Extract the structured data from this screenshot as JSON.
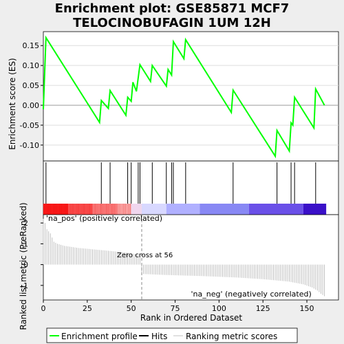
{
  "title_line1": "Enrichment plot: GSE85871 MCF7",
  "title_line2": "TELOCINOBUFAGIN 1UM 12H",
  "legend": {
    "enrichment_profile": "Enrichment profile",
    "hits": "Hits",
    "ranking_metric": "Ranking metric scores"
  },
  "colors": {
    "enrichment_line": "#00ff00",
    "hits": "#000000",
    "ranking_bars": "#c0c0c0",
    "pos_label": "#cc0000",
    "neg_label": "#0000cc",
    "zero_line": "#888888"
  },
  "chart_data": [
    {
      "type": "line",
      "panel": "enrichment",
      "ylabel": "Enrichment score (ES)",
      "xlim": [
        0,
        168
      ],
      "ylim": [
        -0.14,
        0.185
      ],
      "yticks": [
        -0.1,
        -0.05,
        0.0,
        0.05,
        0.1,
        0.15
      ],
      "ytick_labels": [
        "-0.10",
        "-0.05",
        "0.00",
        "0.05",
        "0.10",
        "0.15"
      ],
      "series": [
        {
          "name": "Enrichment profile",
          "x": [
            0,
            1.5,
            32,
            33,
            37,
            38,
            47,
            48,
            50,
            51,
            53,
            55,
            61,
            62,
            70,
            71,
            73,
            74,
            80,
            81,
            107,
            108,
            132,
            133,
            140,
            141,
            142,
            143,
            154,
            155,
            160
          ],
          "y": [
            -0.01,
            0.17,
            -0.043,
            0.012,
            -0.008,
            0.037,
            -0.025,
            0.02,
            0.01,
            0.058,
            0.035,
            0.102,
            0.06,
            0.1,
            0.048,
            0.09,
            0.076,
            0.16,
            0.117,
            0.165,
            -0.018,
            0.038,
            -0.128,
            -0.063,
            -0.115,
            -0.044,
            -0.05,
            0.02,
            -0.057,
            0.041,
            0.0
          ]
        }
      ]
    },
    {
      "type": "scatter",
      "panel": "hits",
      "hit_positions": [
        1.5,
        33,
        38,
        48,
        50,
        54,
        55,
        62,
        70,
        73,
        74,
        81,
        108,
        133,
        141,
        143,
        155
      ]
    },
    {
      "type": "bar",
      "panel": "ranking",
      "xlabel": "Rank in Ordered Dataset",
      "ylabel": "Ranked list metric (PreRanked)",
      "xticks": [
        0,
        25,
        50,
        75,
        100,
        125,
        150
      ],
      "yticks": [
        -1,
        0,
        1,
        2
      ],
      "ylim": [
        -1.7,
        2.4
      ],
      "zero_cross_label": "Zero cross at 56",
      "zero_cross": 56,
      "pos_label": "'na_pos' (positively correlated)",
      "neg_label": "'na_neg' (negatively correlated)",
      "n": 161,
      "anchors_x": [
        0,
        1,
        2,
        4,
        6,
        8,
        12,
        20,
        30,
        40,
        50,
        55,
        56,
        70,
        90,
        110,
        125,
        140,
        148,
        153,
        156,
        158,
        160
      ],
      "anchors_y": [
        2.2,
        2.0,
        1.7,
        1.5,
        1.1,
        1.0,
        0.9,
        0.8,
        0.72,
        0.64,
        0.55,
        0.45,
        -0.45,
        -0.5,
        -0.55,
        -0.62,
        -0.7,
        -0.82,
        -0.95,
        -1.1,
        -1.25,
        -1.4,
        -1.52
      ]
    }
  ]
}
